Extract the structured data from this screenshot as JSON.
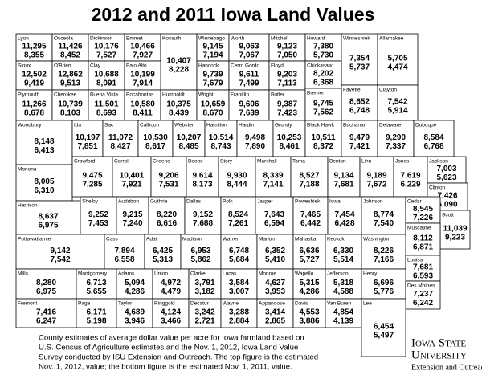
{
  "title": "2012 and 2011 Iowa Land Values",
  "counties": [
    {
      "name": "Lyon",
      "value_2012": "11,295",
      "value_2011": "8,355"
    },
    {
      "name": "Osceola",
      "value_2012": "11,426",
      "value_2011": "8,452"
    },
    {
      "name": "Dickinson",
      "value_2012": "10,176",
      "value_2011": "7,527"
    },
    {
      "name": "Emmet",
      "value_2012": "10,466",
      "value_2011": "7,927"
    },
    {
      "name": "Kossuth",
      "value_2012": "10,407",
      "value_2011": "8,228"
    },
    {
      "name": "Winnebago",
      "value_2012": "9,145",
      "value_2011": "7,194"
    },
    {
      "name": "Worth",
      "value_2012": "9,063",
      "value_2011": "7,067"
    },
    {
      "name": "Mitchell",
      "value_2012": "9,123",
      "value_2011": "7,050"
    },
    {
      "name": "Howard",
      "value_2012": "7,380",
      "value_2011": "5,730"
    },
    {
      "name": "Winneshiek",
      "value_2012": "7,354",
      "value_2011": "5,737"
    },
    {
      "name": "Allamakee",
      "value_2012": "5,705",
      "value_2011": "4,474"
    },
    {
      "name": "Sioux",
      "value_2012": "12,502",
      "value_2011": "9,419"
    },
    {
      "name": "O'Brien",
      "value_2012": "12,862",
      "value_2011": "9,513"
    },
    {
      "name": "Clay",
      "value_2012": "10,688",
      "value_2011": "8,091"
    },
    {
      "name": "Palo Alto",
      "value_2012": "10,199",
      "value_2011": "7,914"
    },
    {
      "name": "Hancock",
      "value_2012": "9,739",
      "value_2011": "7,679"
    },
    {
      "name": "Cerro Gordo",
      "value_2012": "9,611",
      "value_2011": "7,499"
    },
    {
      "name": "Floyd",
      "value_2012": "9,203",
      "value_2011": "7,113"
    },
    {
      "name": "Chickasaw",
      "value_2012": "8,202",
      "value_2011": "6,368"
    },
    {
      "name": "Fayette",
      "value_2012": "8,652",
      "value_2011": "6,748"
    },
    {
      "name": "Clayton",
      "value_2012": "7,542",
      "value_2011": "5,914"
    },
    {
      "name": "Plymouth",
      "value_2012": "11,266",
      "value_2011": "8,678"
    },
    {
      "name": "Cherokee",
      "value_2012": "10,739",
      "value_2011": "8,103"
    },
    {
      "name": "Buena Vista",
      "value_2012": "11,501",
      "value_2011": "8,693"
    },
    {
      "name": "Pocahontas",
      "value_2012": "10,580",
      "value_2011": "8,411"
    },
    {
      "name": "Humboldt",
      "value_2012": "10,375",
      "value_2011": "8,439"
    },
    {
      "name": "Wright",
      "value_2012": "10,659",
      "value_2011": "8,670"
    },
    {
      "name": "Franklin",
      "value_2012": "9,606",
      "value_2011": "7,639"
    },
    {
      "name": "Butler",
      "value_2012": "9,387",
      "value_2011": "7,423"
    },
    {
      "name": "Bremer",
      "value_2012": "9,745",
      "value_2011": "7,562"
    },
    {
      "name": "Woodbury",
      "value_2012": "8,148",
      "value_2011": "6,413"
    },
    {
      "name": "Ida",
      "value_2012": "10,197",
      "value_2011": "7,851"
    },
    {
      "name": "Sac",
      "value_2012": "11,072",
      "value_2011": "8,427"
    },
    {
      "name": "Calhoun",
      "value_2012": "10,530",
      "value_2011": "8,617"
    },
    {
      "name": "Webster",
      "value_2012": "10,207",
      "value_2011": "8,485"
    },
    {
      "name": "Hamilton",
      "value_2012": "10,514",
      "value_2011": "8,743"
    },
    {
      "name": "Hardin",
      "value_2012": "9,498",
      "value_2011": "7,890"
    },
    {
      "name": "Grundy",
      "value_2012": "10,253",
      "value_2011": "8,461"
    },
    {
      "name": "Black Hawk",
      "value_2012": "10,511",
      "value_2011": "8,372"
    },
    {
      "name": "Buchanan",
      "value_2012": "9,479",
      "value_2011": "7,421"
    },
    {
      "name": "Delaware",
      "value_2012": "9,290",
      "value_2011": "7,337"
    },
    {
      "name": "Dubuque",
      "value_2012": "8,584",
      "value_2011": "6,768"
    },
    {
      "name": "Monona",
      "value_2012": "8,005",
      "value_2011": "6,310"
    },
    {
      "name": "Crawford",
      "value_2012": "9,475",
      "value_2011": "7,285"
    },
    {
      "name": "Carroll",
      "value_2012": "10,401",
      "value_2011": "7,921"
    },
    {
      "name": "Greene",
      "value_2012": "9,206",
      "value_2011": "7,531"
    },
    {
      "name": "Boone",
      "value_2012": "9,614",
      "value_2011": "8,173"
    },
    {
      "name": "Story",
      "value_2012": "9,930",
      "value_2011": "8,444"
    },
    {
      "name": "Marshall",
      "value_2012": "8,339",
      "value_2011": "7,141"
    },
    {
      "name": "Tama",
      "value_2012": "8,527",
      "value_2011": "7,188"
    },
    {
      "name": "Benton",
      "value_2012": "9,134",
      "value_2011": "7,681"
    },
    {
      "name": "Linn",
      "value_2012": "9,189",
      "value_2011": "7,672"
    },
    {
      "name": "Jones",
      "value_2012": "7,619",
      "value_2011": "6,229"
    },
    {
      "name": "Jackson",
      "value_2012": "7,003",
      "value_2011": "5,623"
    },
    {
      "name": "Clinton",
      "value_2012": "7,426",
      "value_2011": "6,090"
    },
    {
      "name": "Harrison",
      "value_2012": "8,637",
      "value_2011": "6,975"
    },
    {
      "name": "Shelby",
      "value_2012": "9,252",
      "value_2011": "7,453"
    },
    {
      "name": "Audubon",
      "value_2012": "9,215",
      "value_2011": "7,240"
    },
    {
      "name": "Guthrie",
      "value_2012": "8,220",
      "value_2011": "6,616"
    },
    {
      "name": "Dallas",
      "value_2012": "9,152",
      "value_2011": "7,688"
    },
    {
      "name": "Polk",
      "value_2012": "8,524",
      "value_2011": "7,261"
    },
    {
      "name": "Jasper",
      "value_2012": "7,643",
      "value_2011": "6,594"
    },
    {
      "name": "Poweshiek",
      "value_2012": "7,465",
      "value_2011": "6,442"
    },
    {
      "name": "Iowa",
      "value_2012": "7,454",
      "value_2011": "6,428"
    },
    {
      "name": "Johnson",
      "value_2012": "8,774",
      "value_2011": "7,540"
    },
    {
      "name": "Cedar",
      "value_2012": "8,545",
      "value_2011": "7,226"
    },
    {
      "name": "Scott",
      "value_2012": "11,039",
      "value_2011": "9,223"
    },
    {
      "name": "Muscatine",
      "value_2012": "8,112",
      "value_2011": "6,871"
    },
    {
      "name": "Pottawattamie",
      "value_2012": "9,142",
      "value_2011": "7,542"
    },
    {
      "name": "Cass",
      "value_2012": "7,894",
      "value_2011": "6,558"
    },
    {
      "name": "Adair",
      "value_2012": "6,425",
      "value_2011": "5,313"
    },
    {
      "name": "Madison",
      "value_2012": "6,953",
      "value_2011": "5,862"
    },
    {
      "name": "Warren",
      "value_2012": "6,748",
      "value_2011": "5,684"
    },
    {
      "name": "Marion",
      "value_2012": "6,352",
      "value_2011": "5,410"
    },
    {
      "name": "Mahaska",
      "value_2012": "6,636",
      "value_2011": "5,727"
    },
    {
      "name": "Keokuk",
      "value_2012": "6,330",
      "value_2011": "5,514"
    },
    {
      "name": "Washington",
      "value_2012": "8,226",
      "value_2011": "7,166"
    },
    {
      "name": "Louisa",
      "value_2012": "7,681",
      "value_2011": "6,593"
    },
    {
      "name": "Mills",
      "value_2012": "8,280",
      "value_2011": "6,975"
    },
    {
      "name": "Montgomery",
      "value_2012": "6,713",
      "value_2011": "5,655"
    },
    {
      "name": "Adams",
      "value_2012": "5,094",
      "value_2011": "4,286"
    },
    {
      "name": "Union",
      "value_2012": "4,972",
      "value_2011": "4,479"
    },
    {
      "name": "Clarke",
      "value_2012": "3,791",
      "value_2011": "3,182"
    },
    {
      "name": "Lucas",
      "value_2012": "3,584",
      "value_2011": "3,007"
    },
    {
      "name": "Monroe",
      "value_2012": "4,627",
      "value_2011": "3,953"
    },
    {
      "name": "Wapello",
      "value_2012": "5,315",
      "value_2011": "4,286"
    },
    {
      "name": "Jefferson",
      "value_2012": "5,318",
      "value_2011": "4,588"
    },
    {
      "name": "Henry",
      "value_2012": "6,696",
      "value_2011": "5,776"
    },
    {
      "name": "Des Moines",
      "value_2012": "7,237",
      "value_2011": "6,242"
    },
    {
      "name": "Fremont",
      "value_2012": "7,416",
      "value_2011": "6,247"
    },
    {
      "name": "Page",
      "value_2012": "6,171",
      "value_2011": "5,198"
    },
    {
      "name": "Taylor",
      "value_2012": "4,689",
      "value_2011": "3,946"
    },
    {
      "name": "Ringgold",
      "value_2012": "4,124",
      "value_2011": "3,466"
    },
    {
      "name": "Decatur",
      "value_2012": "3,242",
      "value_2011": "2,721"
    },
    {
      "name": "Wayne",
      "value_2012": "3,288",
      "value_2011": "2,884"
    },
    {
      "name": "Appanoose",
      "value_2012": "3,414",
      "value_2011": "2,865"
    },
    {
      "name": "Davis",
      "value_2012": "4,553",
      "value_2011": "3,886"
    },
    {
      "name": "Van Buren",
      "value_2012": "4,854",
      "value_2011": "4,139"
    },
    {
      "name": "Lee",
      "value_2012": "6,454",
      "value_2011": "5,497"
    }
  ],
  "footnote": [
    "County estimates of average dollar value per acre for Iowa farmland based on",
    "U.S. Census of Agriculture estimates and the Nov. 1, 2012, Iowa Land Value",
    "Survey conducted by ISU Extension and Outreach. The top figure is the estimated",
    "Nov. 1, 2012, value; the bottom figure is the estimated Nov. 1, 2011, value."
  ],
  "logo": {
    "name": "Iowa State",
    "name_line2": "University",
    "unit": "Extension and Outreach"
  }
}
